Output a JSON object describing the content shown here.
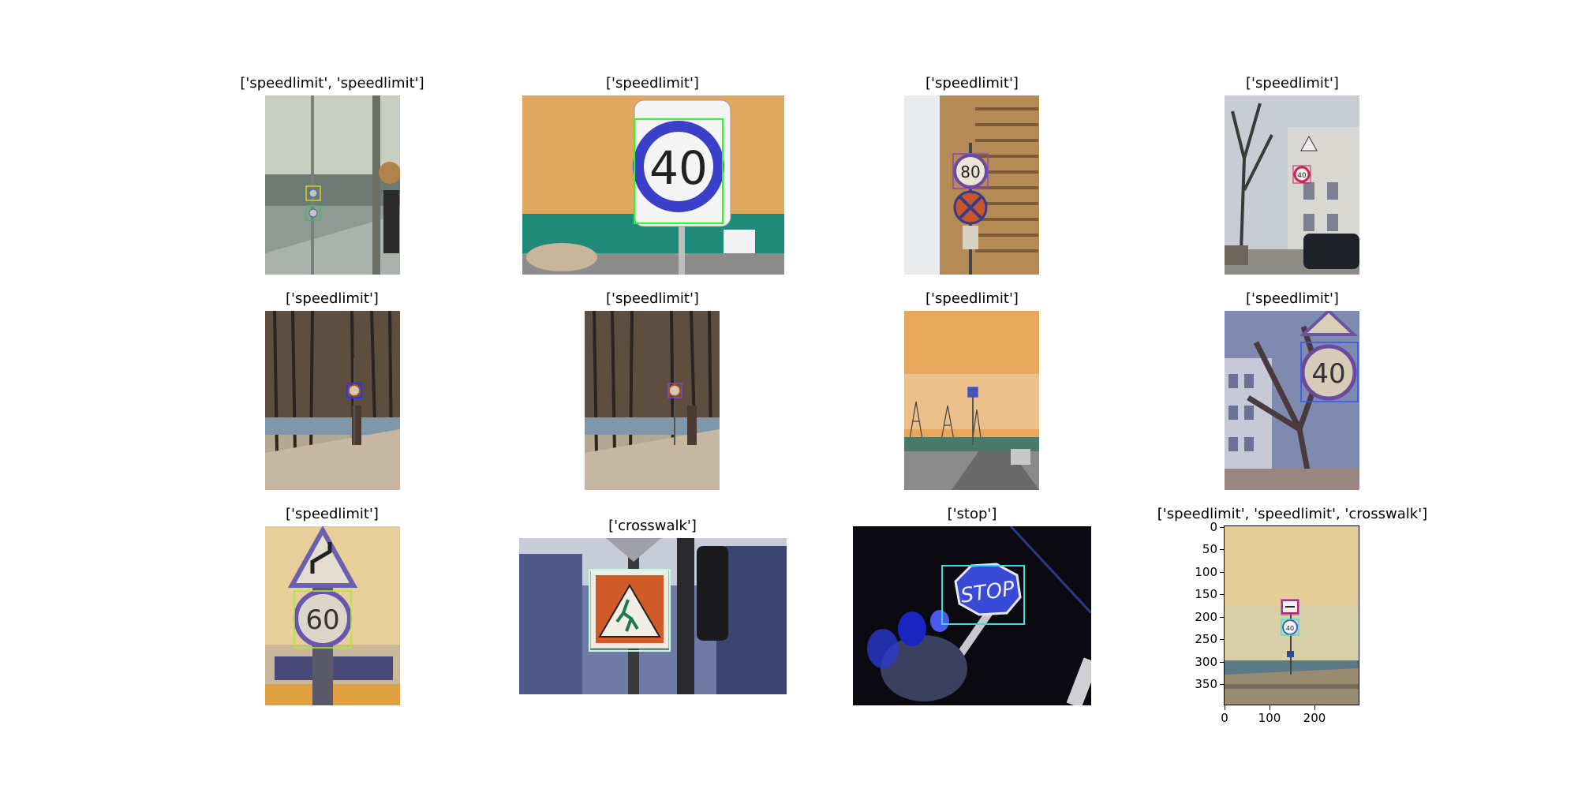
{
  "panels": [
    {
      "title": "['speedlimit', 'speedlimit']"
    },
    {
      "title": "['speedlimit']"
    },
    {
      "title": "['speedlimit']"
    },
    {
      "title": "['speedlimit']"
    },
    {
      "title": "['speedlimit']"
    },
    {
      "title": "['speedlimit']"
    },
    {
      "title": "['speedlimit']"
    },
    {
      "title": "['speedlimit']"
    },
    {
      "title": "['speedlimit']"
    },
    {
      "title": "['crosswalk']"
    },
    {
      "title": "['stop']"
    },
    {
      "title": "['speedlimit', 'speedlimit', 'crosswalk']"
    }
  ],
  "sign_text": {
    "speed_40": "40",
    "speed_80": "80",
    "speed_60": "60",
    "stop": "STOP"
  },
  "last_panel_axes": {
    "y_ticks": [
      "0",
      "50",
      "100",
      "150",
      "200",
      "250",
      "300",
      "350"
    ],
    "x_ticks": [
      "0",
      "100",
      "200"
    ]
  },
  "colors": {
    "box_green": "#22ff22",
    "box_cyan": "#33dddd",
    "box_yellow": "#d8cc22",
    "box_blue": "#3355ee",
    "box_purple": "#8844cc",
    "box_lime": "#aaee22"
  }
}
